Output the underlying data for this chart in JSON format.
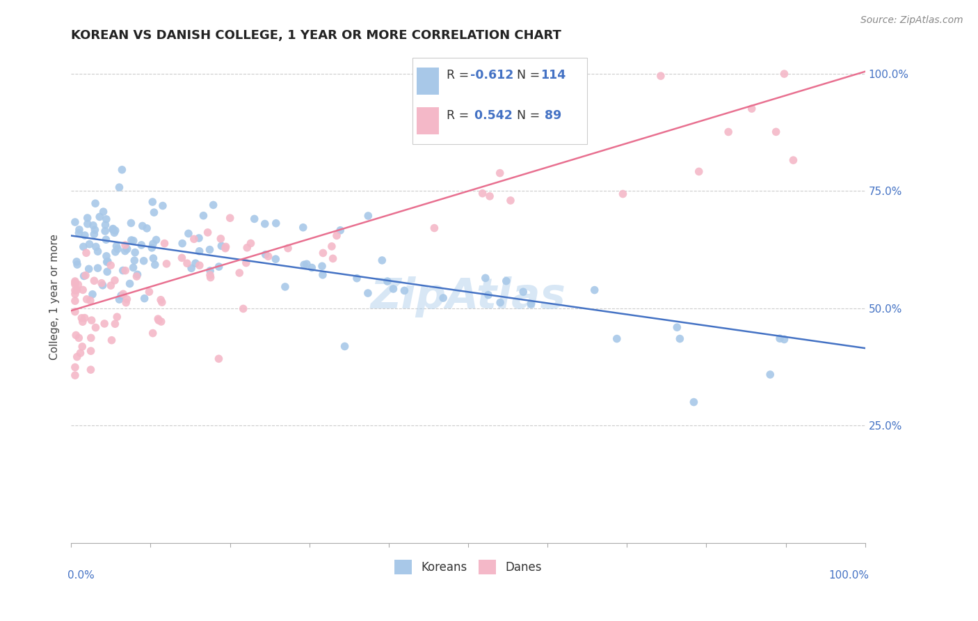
{
  "title": "KOREAN VS DANISH COLLEGE, 1 YEAR OR MORE CORRELATION CHART",
  "source_text": "Source: ZipAtlas.com",
  "ylabel": "College, 1 year or more",
  "xlim": [
    0.0,
    1.0
  ],
  "ylim": [
    0.0,
    1.05
  ],
  "ytick_values": [
    0.25,
    0.5,
    0.75,
    1.0
  ],
  "xtick_values": [
    0.0,
    0.1,
    0.2,
    0.3,
    0.4,
    0.5,
    0.6,
    0.7,
    0.8,
    0.9,
    1.0
  ],
  "korean_color": "#a8c8e8",
  "danish_color": "#f4b8c8",
  "korean_line_color": "#4472c4",
  "danish_line_color": "#e87090",
  "korean_R": -0.612,
  "korean_N": 114,
  "danish_R": 0.542,
  "danish_N": 89,
  "watermark": "ZipAtlas",
  "legend_label_korean": "Koreans",
  "legend_label_danish": "Danes",
  "korean_line_x0": 0.0,
  "korean_line_y0": 0.655,
  "korean_line_x1": 1.0,
  "korean_line_y1": 0.415,
  "danish_line_x0": 0.0,
  "danish_line_y0": 0.495,
  "danish_line_x1": 1.0,
  "danish_line_y1": 1.005
}
